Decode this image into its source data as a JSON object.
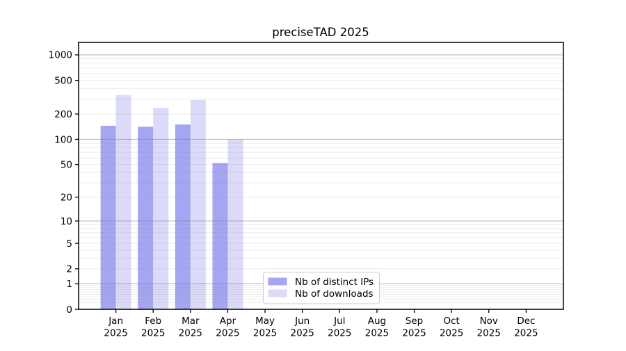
{
  "figure": {
    "title": "preciseTAD 2025"
  },
  "colors": {
    "distinct_ips": "#a5a5f2",
    "downloads": "#dbdbf9",
    "grid": "#808080",
    "axis": "#000000",
    "legend_border": "#cbcbcb",
    "background": "#ffffff"
  },
  "legend": {
    "items": [
      {
        "label": "Nb of distinct IPs"
      },
      {
        "label": "Nb of downloads"
      }
    ]
  },
  "chart_data": {
    "type": "bar",
    "title": "preciseTAD 2025",
    "categories": [
      "Jan",
      "Feb",
      "Mar",
      "Apr",
      "May",
      "Jun",
      "Jul",
      "Aug",
      "Sep",
      "Oct",
      "Nov",
      "Dec"
    ],
    "x_sublabel": "2025",
    "series": [
      {
        "name": "Nb of distinct IPs",
        "color": "#a5a5f2",
        "values": [
          145,
          141,
          150,
          52,
          0,
          0,
          0,
          0,
          0,
          0,
          0,
          0
        ]
      },
      {
        "name": "Nb of downloads",
        "color": "#dbdbf9",
        "values": [
          335,
          237,
          292,
          100,
          0,
          0,
          0,
          0,
          0,
          0,
          0,
          0
        ]
      }
    ],
    "yscale": "log10(value+1)",
    "yticks": [
      1000,
      500,
      200,
      100,
      50,
      20,
      10,
      5,
      2,
      1,
      0
    ],
    "ylim": [
      0,
      1400
    ],
    "grid": {
      "major_at": [
        1,
        10,
        100,
        1000
      ],
      "minor_multiples": [
        2,
        3,
        4,
        5,
        6,
        7,
        8,
        9
      ],
      "minor_decades": [
        -1,
        0,
        1,
        2
      ]
    },
    "legend_position": "bottom-center",
    "xlabel": "",
    "ylabel": ""
  }
}
